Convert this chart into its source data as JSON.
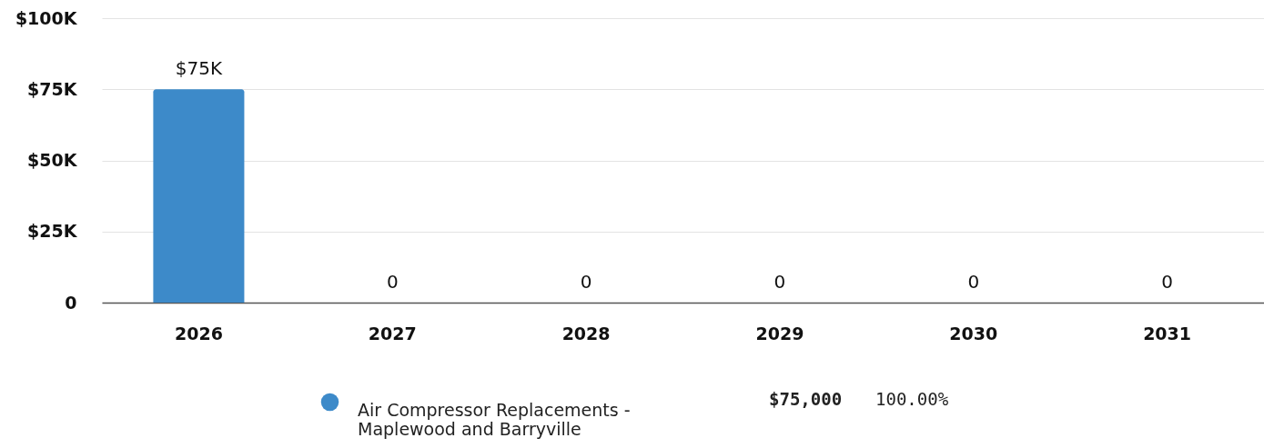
{
  "chart_data": {
    "type": "bar",
    "categories": [
      "2026",
      "2027",
      "2028",
      "2029",
      "2030",
      "2031"
    ],
    "series": [
      {
        "name": "Air Compressor Replacements - Maplewood and Barryville",
        "color": "#3d8ac9",
        "values": [
          75000,
          0,
          0,
          0,
          0,
          0
        ]
      }
    ],
    "value_labels": [
      "$75K",
      "0",
      "0",
      "0",
      "0",
      "0"
    ],
    "ylim": [
      0,
      100000
    ],
    "yticks": [
      0,
      {
        "value": 25000,
        "label": "$25K"
      },
      {
        "value": 50000,
        "label": "$50K"
      },
      {
        "value": 75000,
        "label": "$75K"
      },
      {
        "value": 100000,
        "label": "$100K"
      }
    ],
    "grid": "y",
    "legend": "bottom",
    "annotations": [
      "$75,000",
      "100.00%"
    ]
  }
}
